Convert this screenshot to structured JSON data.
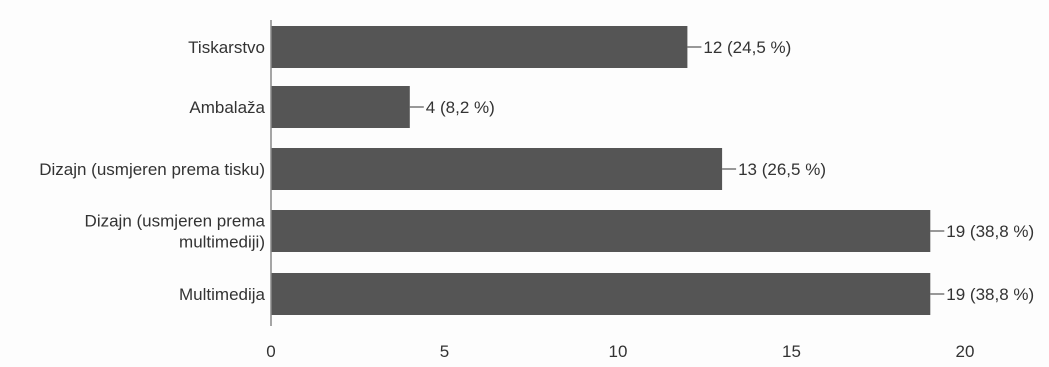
{
  "chart_data": {
    "type": "bar",
    "orientation": "horizontal",
    "title": "",
    "xlabel": "",
    "ylabel": "",
    "categories": [
      [
        "Tiskarstvo"
      ],
      [
        "Ambalaža"
      ],
      [
        "Dizajn (usmjeren prema tisku)"
      ],
      [
        "Dizajn (usmjeren prema",
        "multimediji)"
      ],
      [
        "Multimedija"
      ]
    ],
    "values": [
      12,
      4,
      13,
      19,
      19
    ],
    "value_labels": [
      "12 (24,5 %)",
      "4 (8,2 %)",
      "13 (26,5 %)",
      "19 (38,8 %)",
      "19 (38,8 %)"
    ],
    "xlim": [
      0,
      20
    ],
    "xticks": [
      0,
      5,
      10,
      15,
      20
    ],
    "grid": false,
    "legend": "none",
    "bar_color": "#555555"
  }
}
